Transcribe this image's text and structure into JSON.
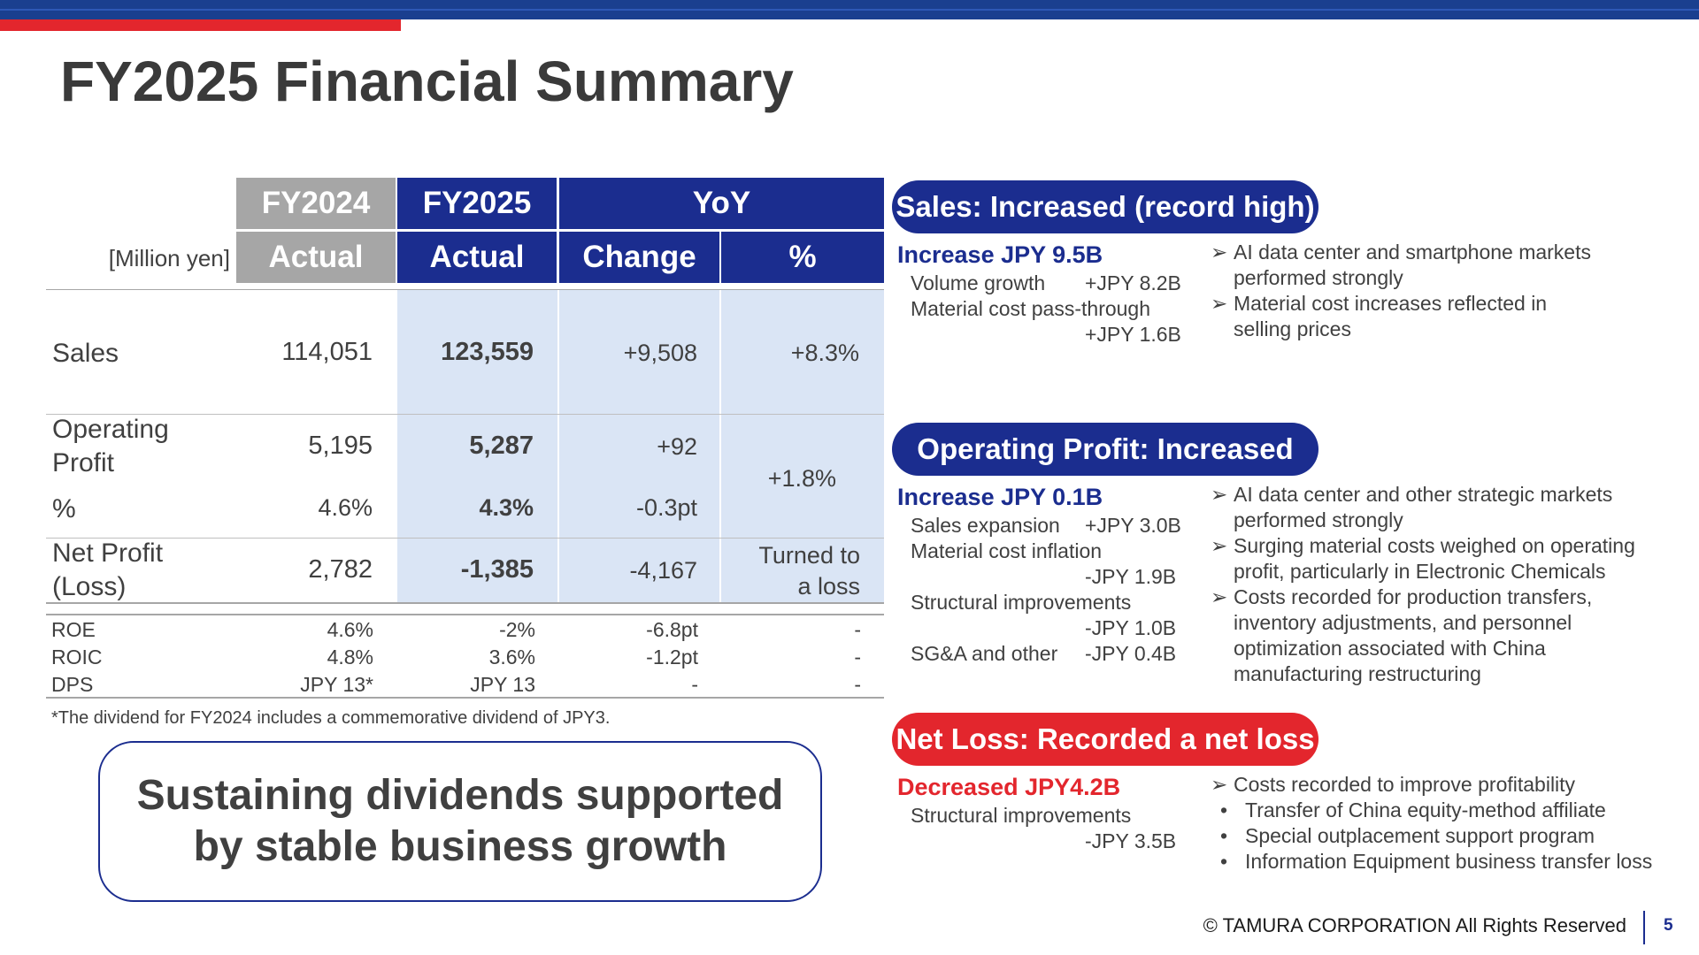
{
  "title": "FY2025 Financial Summary",
  "table": {
    "unit": "[Million yen]",
    "headers": {
      "fy2024": "FY2024",
      "fy2025": "FY2025",
      "yoy": "YoY",
      "actual1": "Actual",
      "actual2": "Actual",
      "change": "Change",
      "pct": "%"
    },
    "sales": {
      "label": "Sales",
      "fy2024": "114,051",
      "fy2025": "123,559",
      "change": "+9,508",
      "pct": "+8.3%"
    },
    "op": {
      "label1": "Operating",
      "label2": "Profit",
      "fy2024": "5,195",
      "fy2025": "5,287",
      "change": "+92",
      "pct": "+1.8%"
    },
    "op_margin": {
      "label": "%",
      "fy2024": "4.6%",
      "fy2025": "4.3%",
      "change": "-0.3pt"
    },
    "net": {
      "label1": "Net Profit",
      "label2": "(Loss)",
      "fy2024": "2,782",
      "fy2025": "-1,385",
      "change": "-4,167",
      "pct1": "Turned to",
      "pct2": "a loss"
    },
    "roe": {
      "label": "ROE",
      "fy2024": "4.6%",
      "fy2025": "-2%",
      "change": "-6.8pt",
      "pct": "-"
    },
    "roic": {
      "label": "ROIC",
      "fy2024": "4.8%",
      "fy2025": "3.6%",
      "change": "-1.2pt",
      "pct": "-"
    },
    "dps": {
      "label": "DPS",
      "fy2024": "JPY 13*",
      "fy2025": "JPY 13",
      "change": "-",
      "pct": "-"
    },
    "footnote": "*The dividend for FY2024 includes a commemorative dividend of JPY3."
  },
  "callout": {
    "line1": "Sustaining dividends supported",
    "line2": "by stable business growth"
  },
  "sales_section": {
    "pill": "Sales: Increased (record high)",
    "headline": "Increase JPY 9.5B",
    "d1_label": "Volume growth",
    "d1_value": "+JPY 8.2B",
    "d2_label": "Material cost pass-through",
    "d2_value": "+JPY 1.6B",
    "bullets": [
      {
        "l1": "AI data center and smartphone markets",
        "l2": "performed strongly"
      },
      {
        "l1": "Material cost increases reflected in",
        "l2": "selling prices"
      }
    ]
  },
  "op_section": {
    "pill": "Operating Profit: Increased",
    "headline": "Increase JPY 0.1B",
    "d1_label": "Sales expansion",
    "d1_value": "+JPY 3.0B",
    "d2_label": "Material cost inflation",
    "d2_value": "-JPY 1.9B",
    "d3_label": "Structural improvements",
    "d3_value": "-JPY 1.0B",
    "d4_label": "SG&A and other",
    "d4_value": "-JPY 0.4B",
    "bullets": [
      {
        "l1": "AI data center and other strategic markets",
        "l2": "performed strongly"
      },
      {
        "l1": "Surging material costs weighed on operating",
        "l2": "profit, particularly in Electronic Chemicals"
      },
      {
        "l1": "Costs recorded for production transfers,",
        "l2": "inventory adjustments, and personnel",
        "l3": "optimization associated with China",
        "l4": "manufacturing restructuring"
      }
    ]
  },
  "net_section": {
    "pill": "Net Loss: Recorded a net loss",
    "headline": "Decreased JPY4.2B",
    "d1_label": "Structural improvements",
    "d1_value": "-JPY 3.5B",
    "bullet_main": "Costs recorded to improve profitability",
    "sub_bullets": [
      "Transfer of China equity-method affiliate",
      "Special outplacement support program",
      "Information Equipment business transfer loss"
    ]
  },
  "footer": {
    "copyright": "© TAMURA CORPORATION All Rights Reserved",
    "page": "5"
  },
  "colors": {
    "navy": "#1b2d8f",
    "red": "#e3262d",
    "gray_header": "#a6a6a6",
    "shade": "#dae5f5",
    "topbar": "#1a3f8f"
  },
  "icons": {
    "bullet": "arrowhead-bullet-icon",
    "sub_bullet": "dot-bullet-icon"
  }
}
